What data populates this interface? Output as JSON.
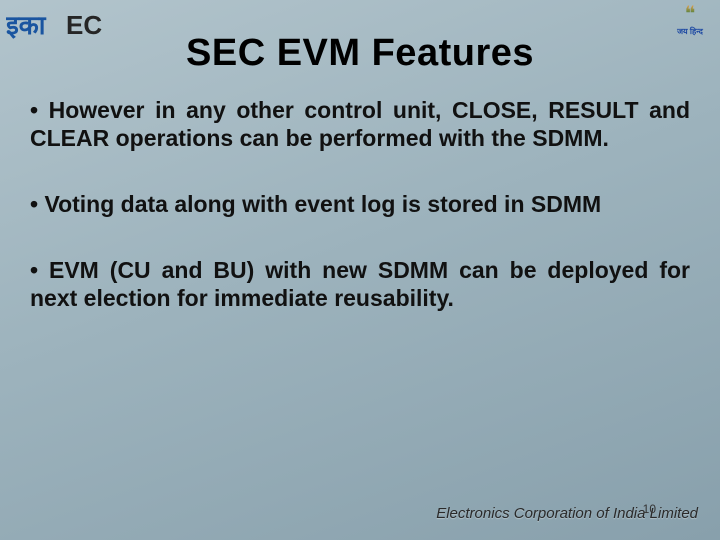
{
  "slide": {
    "background_gradient": [
      "#b2c4cc",
      "#9db3bd",
      "#88a0ac"
    ],
    "title": "SEC EVM Features",
    "title_fontsize": 38,
    "title_color": "#000000",
    "bullets": [
      "• However in any other control unit,  CLOSE, RESULT and CLEAR operations can be performed with the SDMM.",
      "• Voting data along with event log is stored in SDMM",
      "• EVM (CU and BU) with new SDMM can be deployed for next election for immediate reusability."
    ],
    "bullet_fontsize": 23,
    "bullet_color": "#111111",
    "footer": "Electronics Corporation of India Limited",
    "footer_color": "#2a2a2a",
    "slide_number": "10",
    "logos": {
      "left_text1": "इका",
      "left_text2": "EC",
      "left_color1": "#1a55a0",
      "left_color2": "#262626",
      "right_emoji": "❝",
      "right_sub": "जय हिन्द"
    }
  }
}
